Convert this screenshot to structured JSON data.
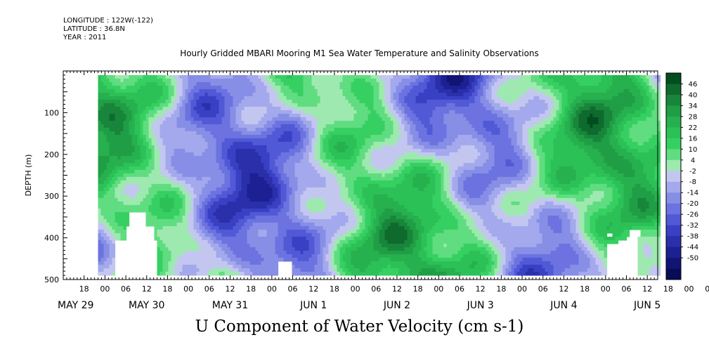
{
  "header": {
    "longitude": "LONGITUDE : 122W(-122)",
    "latitude": "LATITUDE : 36.8N",
    "year": "YEAR : 2011"
  },
  "chart_data": {
    "type": "heatmap",
    "title": "Hourly Gridded MBARI Mooring M1 Sea Water Temperature and Salinity Observations",
    "variable_label": "U Component of Water Velocity (cm s-1)",
    "ylabel": "DEPTH (m)",
    "xlabel": "",
    "ylim": [
      500,
      0
    ],
    "y_ticks": [
      100,
      200,
      300,
      400,
      500
    ],
    "x_hour_labels": [
      "18",
      "00",
      "06",
      "12",
      "18",
      "00",
      "06",
      "12",
      "18",
      "00",
      "06",
      "12",
      "18",
      "00",
      "06",
      "12",
      "18",
      "00",
      "06",
      "12",
      "18",
      "00",
      "06",
      "12",
      "18",
      "00",
      "06",
      "12",
      "18",
      "00",
      "06",
      "12"
    ],
    "x_day_labels": [
      "MAY 29",
      "MAY 30",
      "MAY 31",
      "JUN  1",
      "JUN  2",
      "JUN  3",
      "JUN  4",
      "JUN  5"
    ],
    "time_start": "May 29 12:00",
    "time_end": "Jun 5 15:00",
    "data_start": "May 29 22:00",
    "depth_top": 10,
    "depth_bottom": 485,
    "colorbar_levels": [
      "46",
      "40",
      "34",
      "28",
      "22",
      "16",
      "10",
      "4",
      "-2",
      "-8",
      "-14",
      "-20",
      "-26",
      "-32",
      "-38",
      "-44",
      "-50"
    ],
    "colorbar_colors": [
      "#004d1f",
      "#0f6a2d",
      "#18863a",
      "#209e45",
      "#26b04e",
      "#2cc157",
      "#36d062",
      "#5fdd80",
      "#9ee9b0",
      "#c3c7f0",
      "#a3a9ec",
      "#878ee6",
      "#6c73e0",
      "#5159d6",
      "#3a40c4",
      "#2a2faa",
      "#1c2092",
      "#111474",
      "#080b55"
    ],
    "value_range": [
      -50,
      46
    ],
    "description": "U velocity field vs time and depth; alternating positive (green) and negative (blue) bands, data gaps (white) near bottom"
  }
}
